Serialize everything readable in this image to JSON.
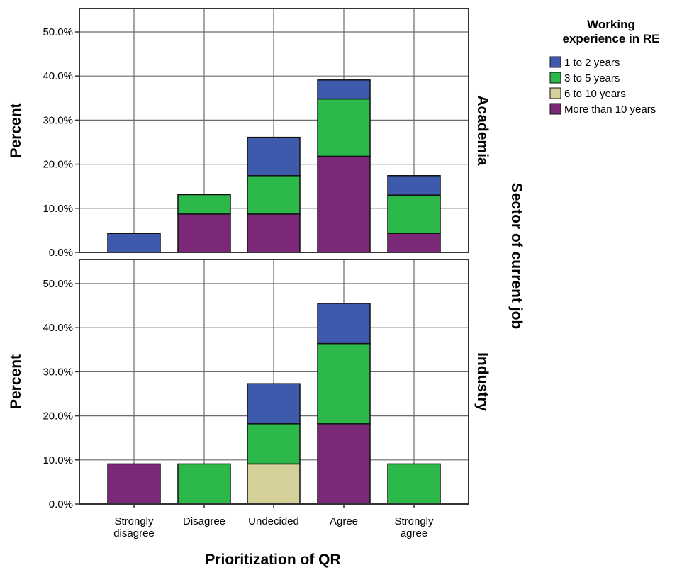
{
  "chart_data": {
    "type": "bar",
    "stacked": true,
    "categories": [
      "Strongly disagree",
      "Disagree",
      "Undecided",
      "Agree",
      "Strongly agree"
    ],
    "category_lines": [
      [
        "Strongly",
        "disagree"
      ],
      [
        "Disagree"
      ],
      [
        "Undecided"
      ],
      [
        "Agree"
      ],
      [
        "Strongly",
        "agree"
      ]
    ],
    "xlabel": "Prioritization of QR",
    "ylabel": "Percent",
    "facet_label": "Sector of current job",
    "ylim": [
      0,
      52
    ],
    "yticks": [
      0,
      10,
      20,
      30,
      40,
      50
    ],
    "ytick_labels": [
      "0.0%",
      "10.0%",
      "20.0%",
      "30.0%",
      "40.0%",
      "50.0%"
    ],
    "grid": true,
    "legend": {
      "title_lines": [
        "Working",
        "experience in RE"
      ],
      "placement": "top-right",
      "entries": [
        "1 to 2 years",
        "3 to 5 years",
        "6 to 10 years",
        "More than 10 years"
      ]
    },
    "series_colors": [
      "#3d5aad",
      "#2db84a",
      "#d5cf9a",
      "#7b2878"
    ],
    "stack_order": [
      3,
      2,
      1,
      0
    ],
    "panels": [
      {
        "name": "Academia",
        "series": [
          {
            "name": "1 to 2 years",
            "values": [
              4.3,
              0,
              8.7,
              4.3,
              4.4
            ]
          },
          {
            "name": "3 to 5 years",
            "values": [
              0,
              4.4,
              8.7,
              13.0,
              8.7
            ]
          },
          {
            "name": "6 to 10 years",
            "values": [
              0,
              0,
              0,
              0,
              0
            ]
          },
          {
            "name": "More than 10 years",
            "values": [
              0,
              8.7,
              8.7,
              21.8,
              4.3
            ]
          }
        ]
      },
      {
        "name": "Industry",
        "series": [
          {
            "name": "1 to 2 years",
            "values": [
              0,
              0,
              9.1,
              9.1,
              0
            ]
          },
          {
            "name": "3 to 5 years",
            "values": [
              0,
              9.1,
              9.1,
              18.2,
              9.1
            ]
          },
          {
            "name": "6 to 10 years",
            "values": [
              0,
              0,
              9.1,
              0,
              0
            ]
          },
          {
            "name": "More than 10 years",
            "values": [
              9.1,
              0,
              0,
              18.2,
              0
            ]
          }
        ]
      }
    ]
  }
}
